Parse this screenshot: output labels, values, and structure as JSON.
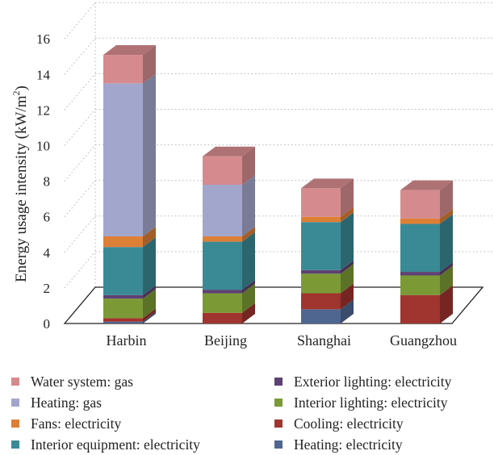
{
  "chart_data": {
    "type": "bar",
    "stacked": true,
    "three_d": true,
    "categories": [
      "Harbin",
      "Beijing",
      "Shanghai",
      "Guangzhou"
    ],
    "ylabel": "Energy usage intensity (kW/m",
    "ylabel_sup": "2",
    "ylabel_close": ")",
    "ylim": [
      0,
      16
    ],
    "yticks": [
      "0",
      "2",
      "4",
      "6",
      "8",
      "10",
      "12",
      "14",
      "16"
    ],
    "grid": "dotted",
    "legend_position": "bottom",
    "series": [
      {
        "name": "Heating: electricity",
        "color": "#4f6691",
        "values": [
          0.1,
          0.0,
          0.8,
          0.0
        ]
      },
      {
        "name": "Cooling: electricity",
        "color": "#a0342e",
        "values": [
          0.2,
          0.6,
          0.9,
          1.6
        ]
      },
      {
        "name": "Interior lighting: electricity",
        "color": "#7b9a35",
        "values": [
          1.1,
          1.1,
          1.1,
          1.1
        ]
      },
      {
        "name": "Exterior lighting: electricity",
        "color": "#5e4173",
        "values": [
          0.2,
          0.2,
          0.2,
          0.2
        ]
      },
      {
        "name": "Interior equipment: electricity",
        "color": "#3a8a96",
        "values": [
          2.7,
          2.7,
          2.7,
          2.7
        ]
      },
      {
        "name": "Fans: electricity",
        "color": "#dd7f35",
        "values": [
          0.6,
          0.3,
          0.3,
          0.3
        ]
      },
      {
        "name": "Heating: gas",
        "color": "#a3a6cc",
        "values": [
          8.6,
          2.9,
          0.0,
          0.0
        ]
      },
      {
        "name": "Water system: gas",
        "color": "#d58b8e",
        "values": [
          1.6,
          1.6,
          1.6,
          1.6
        ]
      }
    ],
    "legend_order": [
      "Water system: gas",
      "Exterior lighting: electricity",
      "Heating: gas",
      "Interior lighting: electricity",
      "Fans: electricity",
      "Cooling: electricity",
      "Interior equipment: electricity",
      "Heating: electricity"
    ]
  }
}
